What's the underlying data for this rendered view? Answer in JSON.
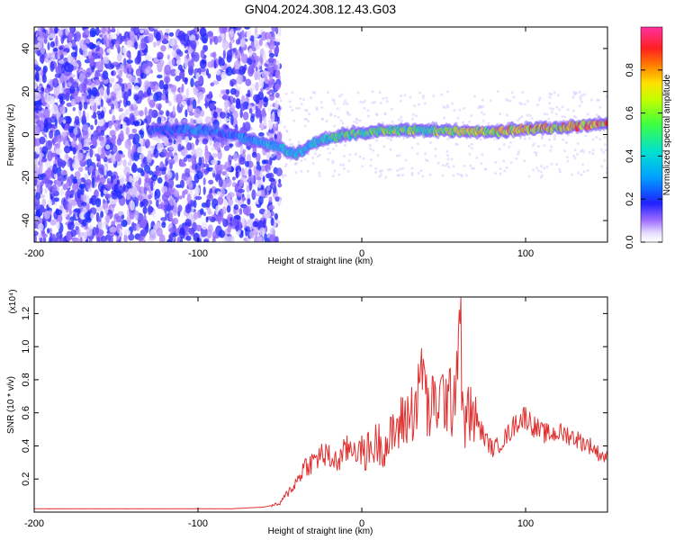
{
  "title": "GN04.2024.308.12.43.G03",
  "colors": {
    "snr_line": "#e03030",
    "colormap": [
      "#ffffff",
      "#e0d0ff",
      "#c090ff",
      "#8844ee",
      "#5a1fe0",
      "#1a1aff",
      "#00b0ff",
      "#00e0c0",
      "#40ff40",
      "#d0ff00",
      "#ffe000",
      "#ff8000",
      "#ff2020",
      "#ff30a0"
    ]
  },
  "chart_data": [
    {
      "type": "heatmap",
      "xlabel": "Height of straight line (km)",
      "ylabel": "Frequency (Hz)",
      "xlim": [
        -200,
        150
      ],
      "ylim": [
        -50,
        50
      ],
      "xticks": [
        -200,
        -100,
        0,
        100
      ],
      "xtick_labels": [
        "-200",
        "-100",
        "0",
        "100"
      ],
      "yticks": [
        -40,
        -20,
        0,
        20,
        40
      ],
      "ytick_labels": [
        "-40",
        "-20",
        "0",
        "20",
        "40"
      ],
      "colorbar": {
        "label": "Normalized spectral amplitude",
        "range": [
          0,
          1
        ],
        "ticks": [
          0,
          0.2,
          0.4,
          0.6,
          0.8
        ],
        "tick_labels": [
          "0.0",
          "0.2",
          "0.4",
          "0.6",
          "0.8"
        ]
      },
      "ridge": {
        "x": [
          -130,
          -110,
          -100,
          -90,
          -80,
          -70,
          -60,
          -50,
          -45,
          -40,
          -35,
          -30,
          -20,
          -10,
          0,
          10,
          20,
          40,
          60,
          80,
          100,
          120,
          140,
          150
        ],
        "freq": [
          2,
          2.5,
          2,
          1.5,
          0,
          -2,
          -4,
          -6,
          -8,
          -9,
          -7,
          -4,
          -2,
          0,
          1,
          1.5,
          2,
          2,
          1.5,
          1.5,
          2.5,
          3,
          4.5,
          5
        ],
        "amplitude": [
          0.25,
          0.3,
          0.35,
          0.3,
          0.3,
          0.35,
          0.4,
          0.45,
          0.5,
          0.45,
          0.45,
          0.5,
          0.55,
          0.6,
          0.65,
          0.6,
          0.7,
          0.65,
          0.75,
          0.8,
          0.85,
          0.9,
          0.95,
          0.95
        ]
      }
    },
    {
      "type": "line",
      "xlabel": "Height of straight line (km)",
      "ylabel": "SNR (10 * v/v)",
      "exponent_label": "(x10⁴)",
      "xlim": [
        -200,
        150
      ],
      "ylim": [
        0,
        1.3
      ],
      "xticks": [
        -200,
        -100,
        0,
        100
      ],
      "xtick_labels": [
        "-200",
        "-100",
        "0",
        "100"
      ],
      "yticks": [
        0.2,
        0.4,
        0.6,
        0.8,
        1.0,
        1.2
      ],
      "ytick_labels": [
        "0.2",
        "0.4",
        "0.6",
        "0.8",
        "1.0",
        "1.2"
      ],
      "series": [
        {
          "x": [
            -200,
            -180,
            -160,
            -140,
            -120,
            -100,
            -80,
            -60,
            -50,
            -45,
            -40,
            -35,
            -30,
            -25,
            -20,
            -15,
            -10,
            -5,
            0,
            5,
            10,
            15,
            20,
            25,
            30,
            35,
            37,
            40,
            45,
            50,
            55,
            58,
            60,
            62,
            65,
            70,
            75,
            80,
            85,
            90,
            95,
            100,
            105,
            110,
            115,
            120,
            125,
            130,
            135,
            140,
            145,
            150
          ],
          "y": [
            0.02,
            0.02,
            0.02,
            0.02,
            0.02,
            0.02,
            0.02,
            0.03,
            0.05,
            0.12,
            0.18,
            0.28,
            0.3,
            0.35,
            0.33,
            0.3,
            0.37,
            0.4,
            0.35,
            0.38,
            0.42,
            0.4,
            0.48,
            0.55,
            0.6,
            0.7,
            0.95,
            0.6,
            0.65,
            0.7,
            0.65,
            0.9,
            1.28,
            0.5,
            0.6,
            0.55,
            0.45,
            0.38,
            0.42,
            0.48,
            0.55,
            0.58,
            0.52,
            0.48,
            0.47,
            0.48,
            0.47,
            0.45,
            0.42,
            0.4,
            0.35,
            0.33
          ]
        }
      ]
    }
  ]
}
